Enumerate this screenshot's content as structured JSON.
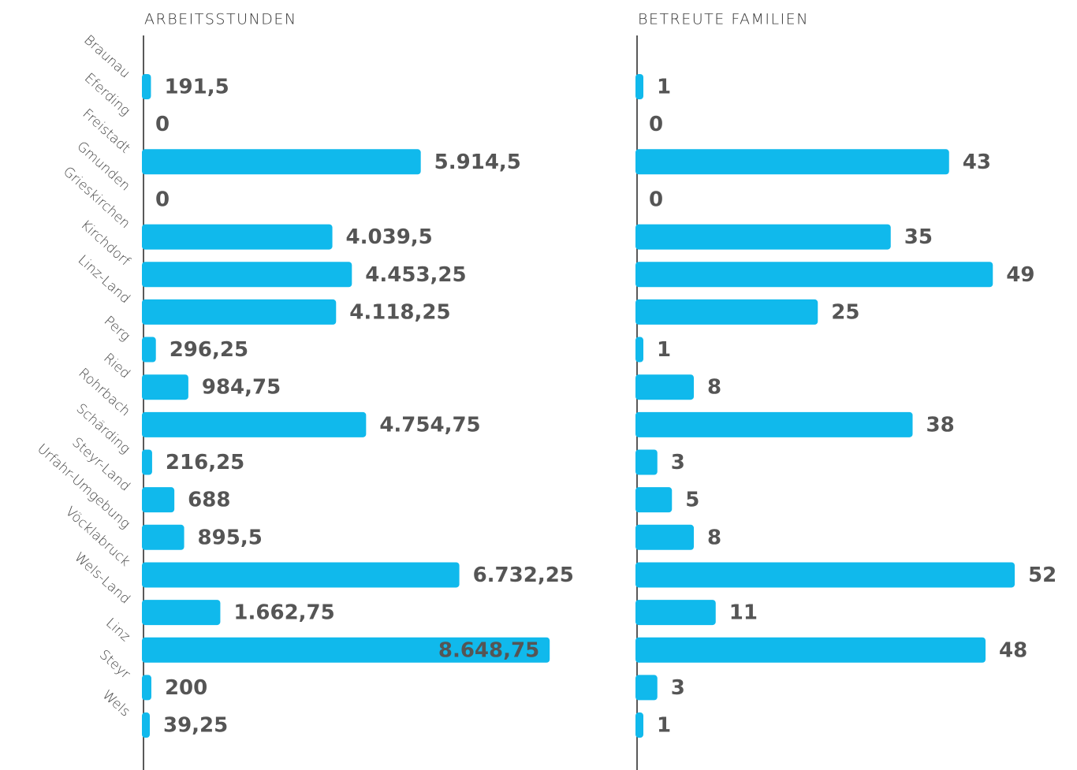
{
  "chart_data": [
    {
      "type": "bar",
      "title": "ARBEITSSTUNDEN",
      "color": "#10b9ec",
      "xlim": [
        0,
        10000
      ],
      "categories": [
        "Braunau",
        "Eferding",
        "Freistadt",
        "Gmunden",
        "Grieskirchen",
        "Kirchdorf",
        "Linz-Land",
        "Perg",
        "Ried",
        "Rohrbach",
        "Schärding",
        "Steyr-Land",
        "Urfahr-Umgebung",
        "Vöcklabruck",
        "Wels-Land",
        "Linz",
        "Steyr",
        "Wels"
      ],
      "values": [
        191.5,
        0,
        5914.5,
        0,
        4039.5,
        4453.25,
        4118.25,
        296.25,
        984.75,
        4754.75,
        216.25,
        688,
        895.5,
        6732.25,
        1662.75,
        8648.75,
        200,
        39.25
      ],
      "value_labels": [
        "191,5",
        "0",
        "5.914,5",
        "0",
        "4.039,5",
        "4.453,25",
        "4.118,25",
        "296,25",
        "984,75",
        "4.754,75",
        "216,25",
        "688",
        "895,5",
        "6.732,25",
        "1.662,75",
        "8.648,75",
        "200",
        "39,25"
      ]
    },
    {
      "type": "bar",
      "title": "BETREUTE FAMILIEN",
      "color": "#10b9ec",
      "xlim": [
        0,
        60
      ],
      "values": [
        1,
        0,
        43,
        0,
        35,
        49,
        25,
        1,
        8,
        38,
        3,
        5,
        8,
        52,
        11,
        48,
        3,
        1
      ]
    }
  ]
}
